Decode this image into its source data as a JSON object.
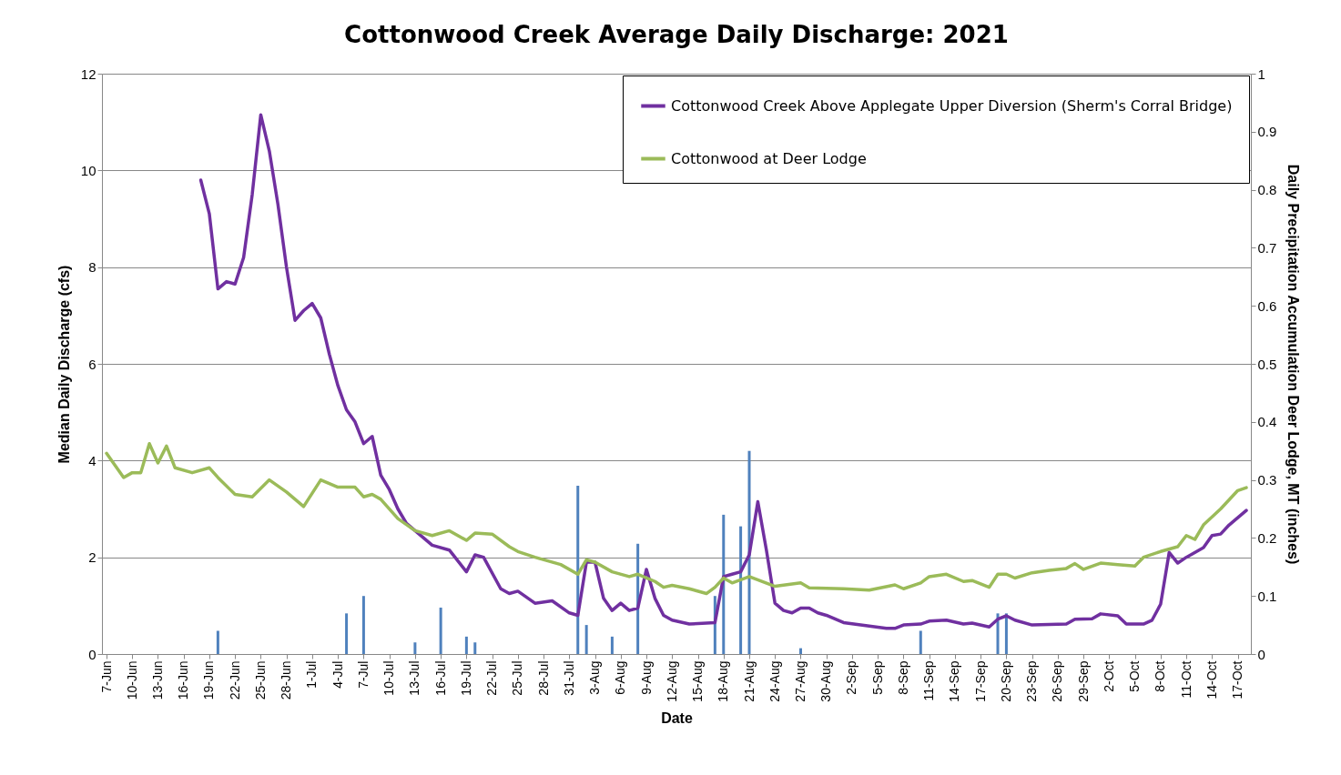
{
  "chart_data": {
    "type": "line",
    "title": "Cottonwood Creek Average Daily Discharge: 2021",
    "xlabel": "Date",
    "ylabel": "Median Daily Discharge (cfs)",
    "y2label": "Daily Precipitation Accumulation Deer Lodge, MT (inches)",
    "xlim": [
      "--06-07",
      "--10-18"
    ],
    "xticks": [
      {
        "value": "--06-07",
        "label": "7-Jun"
      },
      {
        "value": "--06-10",
        "label": "10-Jun"
      },
      {
        "value": "--06-13",
        "label": "13-Jun"
      },
      {
        "value": "--06-16",
        "label": "16-Jun"
      },
      {
        "value": "--06-19",
        "label": "19-Jun"
      },
      {
        "value": "--06-22",
        "label": "22-Jun"
      },
      {
        "value": "--06-25",
        "label": "25-Jun"
      },
      {
        "value": "--06-28",
        "label": "28-Jun"
      },
      {
        "value": "--07-01",
        "label": "1-Jul"
      },
      {
        "value": "--07-04",
        "label": "4-Jul"
      },
      {
        "value": "--07-07",
        "label": "7-Jul"
      },
      {
        "value": "--07-10",
        "label": "10-Jul"
      },
      {
        "value": "--07-13",
        "label": "13-Jul"
      },
      {
        "value": "--07-16",
        "label": "16-Jul"
      },
      {
        "value": "--07-19",
        "label": "19-Jul"
      },
      {
        "value": "--07-22",
        "label": "22-Jul"
      },
      {
        "value": "--07-25",
        "label": "25-Jul"
      },
      {
        "value": "--07-28",
        "label": "28-Jul"
      },
      {
        "value": "--07-31",
        "label": "31-Jul"
      },
      {
        "value": "--08-03",
        "label": "3-Aug"
      },
      {
        "value": "--08-06",
        "label": "6-Aug"
      },
      {
        "value": "--08-09",
        "label": "9-Aug"
      },
      {
        "value": "--08-12",
        "label": "12-Aug"
      },
      {
        "value": "--08-15",
        "label": "15-Aug"
      },
      {
        "value": "--08-18",
        "label": "18-Aug"
      },
      {
        "value": "--08-21",
        "label": "21-Aug"
      },
      {
        "value": "--08-24",
        "label": "24-Aug"
      },
      {
        "value": "--08-27",
        "label": "27-Aug"
      },
      {
        "value": "--08-30",
        "label": "30-Aug"
      },
      {
        "value": "--09-02",
        "label": "2-Sep"
      },
      {
        "value": "--09-05",
        "label": "5-Sep"
      },
      {
        "value": "--09-08",
        "label": "8-Sep"
      },
      {
        "value": "--09-11",
        "label": "11-Sep"
      },
      {
        "value": "--09-14",
        "label": "14-Sep"
      },
      {
        "value": "--09-17",
        "label": "17-Sep"
      },
      {
        "value": "--09-20",
        "label": "20-Sep"
      },
      {
        "value": "--09-23",
        "label": "23-Sep"
      },
      {
        "value": "--09-26",
        "label": "26-Sep"
      },
      {
        "value": "--09-29",
        "label": "29-Sep"
      },
      {
        "value": "--10-02",
        "label": "2-Oct"
      },
      {
        "value": "--10-05",
        "label": "5-Oct"
      },
      {
        "value": "--10-08",
        "label": "8-Oct"
      },
      {
        "value": "--10-11",
        "label": "11-Oct"
      },
      {
        "value": "--10-14",
        "label": "14-Oct"
      },
      {
        "value": "--10-17",
        "label": "17-Oct"
      }
    ],
    "ylim": [
      0,
      12
    ],
    "yticks": [
      0,
      2,
      4,
      6,
      8,
      10,
      12
    ],
    "y2lim": [
      0,
      1
    ],
    "y2ticks": [
      0,
      0.1,
      0.2,
      0.3,
      0.4,
      0.5,
      0.6,
      0.7,
      0.8,
      0.9,
      1
    ],
    "grid": "y",
    "legend": "top right",
    "series": [
      {
        "name": "Cottonwood Creek Above Applegate Upper Diversion (Sherm's Corral Bridge)",
        "color": "#7030a0",
        "x": [
          "--06-18",
          "--06-19",
          "--06-20",
          "--06-21",
          "--06-22",
          "--06-23",
          "--06-24",
          "--06-25",
          "--06-26",
          "--06-27",
          "--06-28",
          "--06-29",
          "--06-30",
          "--07-01",
          "--07-02",
          "--07-03",
          "--07-04",
          "--07-05",
          "--07-06",
          "--07-07",
          "--07-08",
          "--07-09",
          "--07-10",
          "--07-11",
          "--07-12",
          "--07-13",
          "--07-15",
          "--07-17",
          "--07-19",
          "--07-20",
          "--07-21",
          "--07-23",
          "--07-24",
          "--07-25",
          "--07-27",
          "--07-29",
          "--07-31",
          "--08-01",
          "--08-02",
          "--08-03",
          "--08-04",
          "--08-05",
          "--08-06",
          "--08-07",
          "--08-08",
          "--08-09",
          "--08-10",
          "--08-11",
          "--08-12",
          "--08-14",
          "--08-17",
          "--08-18",
          "--08-19",
          "--08-20",
          "--08-21",
          "--08-22",
          "--08-23",
          "--08-24",
          "--08-25",
          "--08-26",
          "--08-27",
          "--08-28",
          "--08-29",
          "--08-30",
          "--09-01",
          "--09-03",
          "--09-06",
          "--09-07",
          "--09-08",
          "--09-10",
          "--09-11",
          "--09-13",
          "--09-15",
          "--09-16",
          "--09-18",
          "--09-19",
          "--09-20",
          "--09-21",
          "--09-23",
          "--09-27",
          "--09-28",
          "--09-30",
          "--10-01",
          "--10-03",
          "--10-04",
          "--10-06",
          "--10-07",
          "--10-08",
          "--10-09",
          "--10-10",
          "--10-11",
          "--10-13",
          "--10-14",
          "--10-15",
          "--10-16",
          "--10-18"
        ],
        "values": [
          9.8,
          9.1,
          7.55,
          7.7,
          7.65,
          8.2,
          9.5,
          11.15,
          10.4,
          9.3,
          8.0,
          6.9,
          7.1,
          7.25,
          6.95,
          6.2,
          5.55,
          5.05,
          4.8,
          4.35,
          4.5,
          3.7,
          3.4,
          3.0,
          2.7,
          2.55,
          2.25,
          2.15,
          1.7,
          2.05,
          2.0,
          1.35,
          1.25,
          1.3,
          1.05,
          1.1,
          0.85,
          0.8,
          1.9,
          1.9,
          1.15,
          0.9,
          1.05,
          0.9,
          0.95,
          1.75,
          1.15,
          0.8,
          0.7,
          0.62,
          0.65,
          1.6,
          1.65,
          1.7,
          2.05,
          3.15,
          2.15,
          1.05,
          0.9,
          0.85,
          0.95,
          0.95,
          0.85,
          0.8,
          0.65,
          0.6,
          0.53,
          0.53,
          0.6,
          0.62,
          0.68,
          0.7,
          0.62,
          0.64,
          0.56,
          0.72,
          0.79,
          0.7,
          0.6,
          0.62,
          0.72,
          0.73,
          0.83,
          0.79,
          0.62,
          0.62,
          0.7,
          1.03,
          2.1,
          1.88,
          2.0,
          2.2,
          2.45,
          2.48,
          2.67,
          2.97
        ]
      },
      {
        "name": "Cottonwood at Deer Lodge",
        "color": "#9bbb59",
        "x": [
          "--06-07",
          "--06-09",
          "--06-10",
          "--06-11",
          "--06-12",
          "--06-13",
          "--06-14",
          "--06-15",
          "--06-17",
          "--06-19",
          "--06-20",
          "--06-22",
          "--06-24",
          "--06-26",
          "--06-28",
          "--06-30",
          "--07-02",
          "--07-04",
          "--07-06",
          "--07-07",
          "--07-08",
          "--07-09",
          "--07-11",
          "--07-13",
          "--07-15",
          "--07-17",
          "--07-19",
          "--07-20",
          "--07-22",
          "--07-24",
          "--07-25",
          "--07-27",
          "--07-30",
          "--08-01",
          "--08-02",
          "--08-03",
          "--08-05",
          "--08-07",
          "--08-08",
          "--08-10",
          "--08-11",
          "--08-12",
          "--08-14",
          "--08-16",
          "--08-17",
          "--08-18",
          "--08-19",
          "--08-21",
          "--08-24",
          "--08-27",
          "--08-28",
          "--09-01",
          "--09-04",
          "--09-07",
          "--09-08",
          "--09-10",
          "--09-11",
          "--09-13",
          "--09-15",
          "--09-16",
          "--09-18",
          "--09-19",
          "--09-20",
          "--09-21",
          "--09-23",
          "--09-25",
          "--09-27",
          "--09-28",
          "--09-29",
          "--10-01",
          "--10-03",
          "--10-05",
          "--10-06",
          "--10-08",
          "--10-10",
          "--10-11",
          "--10-12",
          "--10-13",
          "--10-15",
          "--10-17",
          "--10-18"
        ],
        "values": [
          4.15,
          3.65,
          3.75,
          3.75,
          4.35,
          3.95,
          4.3,
          3.85,
          3.75,
          3.85,
          3.65,
          3.3,
          3.25,
          3.6,
          3.35,
          3.05,
          3.6,
          3.45,
          3.45,
          3.25,
          3.3,
          3.2,
          2.8,
          2.55,
          2.45,
          2.55,
          2.35,
          2.5,
          2.48,
          2.22,
          2.12,
          2.0,
          1.85,
          1.65,
          1.95,
          1.9,
          1.7,
          1.6,
          1.65,
          1.5,
          1.38,
          1.42,
          1.35,
          1.25,
          1.38,
          1.57,
          1.47,
          1.6,
          1.4,
          1.47,
          1.37,
          1.35,
          1.32,
          1.43,
          1.35,
          1.47,
          1.6,
          1.65,
          1.5,
          1.52,
          1.38,
          1.65,
          1.65,
          1.57,
          1.68,
          1.73,
          1.77,
          1.87,
          1.75,
          1.88,
          1.85,
          1.82,
          2.0,
          2.12,
          2.22,
          2.45,
          2.37,
          2.67,
          3.0,
          3.38,
          3.44
        ]
      },
      {
        "type": "bar",
        "axis": "y2",
        "color": "#4f81bd",
        "x": [
          "--06-20",
          "--07-05",
          "--07-07",
          "--07-13",
          "--07-16",
          "--07-19",
          "--07-20",
          "--08-01",
          "--08-02",
          "--08-05",
          "--08-08",
          "--08-17",
          "--08-18",
          "--08-20",
          "--08-21",
          "--08-27",
          "--09-10",
          "--09-19",
          "--09-20"
        ],
        "values": [
          0.04,
          0.07,
          0.1,
          0.02,
          0.08,
          0.03,
          0.02,
          0.29,
          0.05,
          0.03,
          0.19,
          0.1,
          0.24,
          0.22,
          0.35,
          0.01,
          0.04,
          0.07,
          0.07
        ]
      }
    ]
  }
}
